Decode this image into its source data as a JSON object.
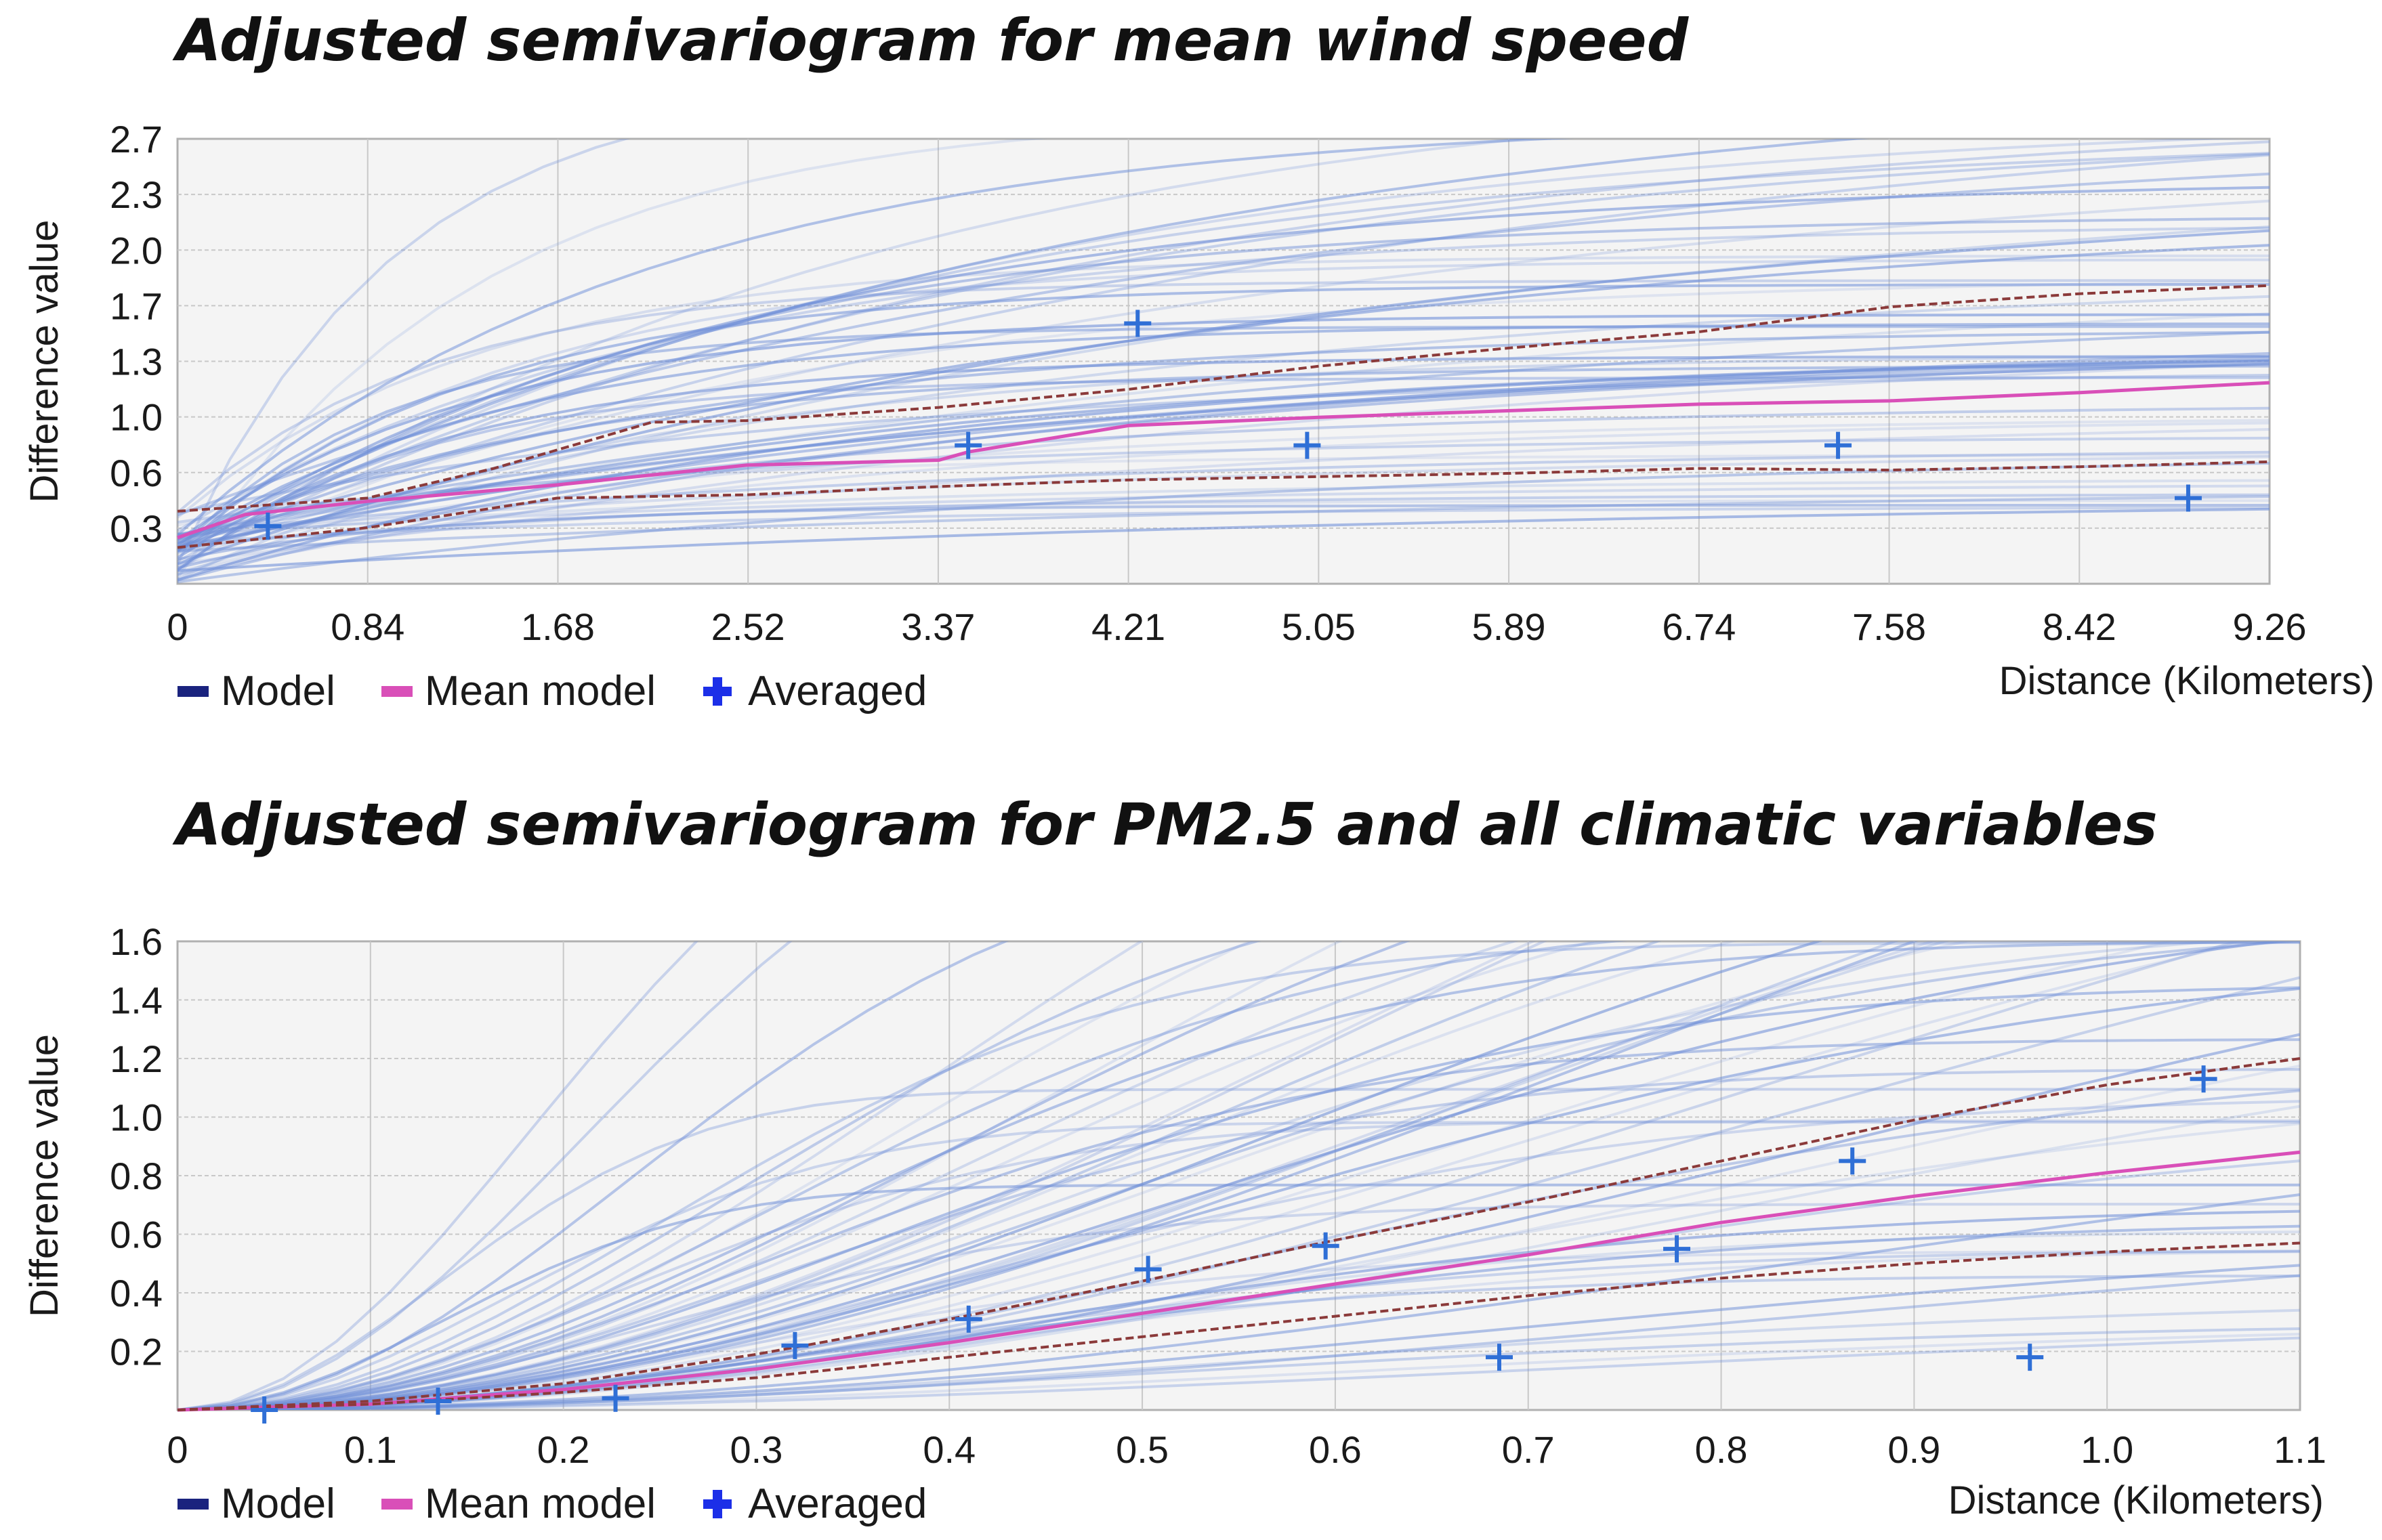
{
  "colors": {
    "model_line": "#1a237e",
    "mean_model": "#d94fb8",
    "averaged": "#1c2fe8",
    "plot_bg": "#f4f4f4",
    "grid": "#c8c8c8",
    "fit_lines": "#6f8fd8",
    "bound_lines": "#8b3a3a"
  },
  "legend": {
    "model": "Model",
    "mean_model": "Mean model",
    "averaged": "Averaged"
  },
  "chart_data": [
    {
      "type": "line",
      "title": "Adjusted semivariogram for mean wind speed",
      "xlabel": "Distance (Kilometers)",
      "ylabel": "Difference value",
      "x_ticks": [
        "0",
        "0.84",
        "1.68",
        "2.52",
        "3.37",
        "4.21",
        "5.05",
        "5.89",
        "6.74",
        "7.58",
        "8.42",
        "9.26"
      ],
      "y_ticks": [
        "0.3",
        "0.6",
        "1.0",
        "1.3",
        "1.7",
        "2.0",
        "2.3",
        "2.7"
      ],
      "xlim": [
        0,
        9.26
      ],
      "ylim": [
        0,
        2.7
      ],
      "grid": true,
      "series": [
        {
          "name": "Mean model",
          "x": [
            0,
            0.3,
            0.84,
            1.68,
            2.52,
            3.37,
            3.5,
            4.21,
            5.05,
            5.89,
            6.74,
            7.58,
            8.42,
            9.26
          ],
          "values": [
            0.28,
            0.42,
            0.5,
            0.6,
            0.72,
            0.75,
            0.8,
            0.96,
            1.01,
            1.05,
            1.09,
            1.11,
            1.16,
            1.22
          ]
        },
        {
          "name": "Upper bound",
          "x": [
            0,
            0.84,
            1.4,
            2.1,
            2.52,
            3.37,
            4.21,
            5.05,
            5.89,
            6.74,
            7.58,
            8.42,
            9.26
          ],
          "values": [
            0.44,
            0.52,
            0.7,
            0.98,
            0.99,
            1.07,
            1.18,
            1.32,
            1.43,
            1.53,
            1.68,
            1.76,
            1.81
          ]
        },
        {
          "name": "Lower bound",
          "x": [
            0,
            0.84,
            1.68,
            2.52,
            3.37,
            4.21,
            5.05,
            5.89,
            6.74,
            7.58,
            8.42,
            9.26
          ],
          "values": [
            0.22,
            0.34,
            0.52,
            0.54,
            0.59,
            0.63,
            0.65,
            0.67,
            0.7,
            0.69,
            0.71,
            0.74
          ]
        },
        {
          "name": "Averaged",
          "x": [
            0.4,
            3.5,
            4.25,
            5.0,
            7.35,
            8.9
          ],
          "values": [
            0.35,
            0.84,
            1.58,
            0.84,
            0.84,
            0.52
          ]
        }
      ]
    },
    {
      "type": "line",
      "title": "Adjusted semivariogram for PM2.5 and all climatic variables",
      "xlabel": "Distance (Kilometers)",
      "ylabel": "Difference value",
      "x_ticks": [
        "0",
        "0.1",
        "0.2",
        "0.3",
        "0.4",
        "0.5",
        "0.6",
        "0.7",
        "0.8",
        "0.9",
        "1.0",
        "1.1"
      ],
      "y_ticks": [
        "0.2",
        "0.4",
        "0.6",
        "0.8",
        "1.0",
        "1.2",
        "1.4",
        "1.6"
      ],
      "xlim": [
        0,
        1.1
      ],
      "ylim": [
        0,
        1.6
      ],
      "grid": true,
      "series": [
        {
          "name": "Mean model",
          "x": [
            0,
            0.1,
            0.2,
            0.3,
            0.4,
            0.5,
            0.6,
            0.7,
            0.8,
            0.9,
            1.0,
            1.1
          ],
          "values": [
            0,
            0.02,
            0.07,
            0.14,
            0.23,
            0.33,
            0.43,
            0.53,
            0.64,
            0.73,
            0.81,
            0.88
          ]
        },
        {
          "name": "Upper bound",
          "x": [
            0,
            0.1,
            0.2,
            0.3,
            0.4,
            0.5,
            0.6,
            0.7,
            0.8,
            0.9,
            1.0,
            1.1
          ],
          "values": [
            0,
            0.03,
            0.09,
            0.19,
            0.31,
            0.44,
            0.58,
            0.71,
            0.85,
            0.99,
            1.11,
            1.2
          ]
        },
        {
          "name": "Lower bound",
          "x": [
            0,
            0.1,
            0.2,
            0.3,
            0.4,
            0.5,
            0.6,
            0.7,
            0.8,
            0.9,
            1.0,
            1.1
          ],
          "values": [
            0,
            0.02,
            0.06,
            0.11,
            0.18,
            0.25,
            0.32,
            0.39,
            0.45,
            0.5,
            0.54,
            0.57
          ]
        },
        {
          "name": "Averaged",
          "x": [
            0.045,
            0.135,
            0.227,
            0.32,
            0.41,
            0.503,
            0.595,
            0.685,
            0.777,
            0.868,
            0.96,
            1.05
          ],
          "values": [
            0.0,
            0.03,
            0.04,
            0.22,
            0.31,
            0.48,
            0.56,
            0.18,
            0.55,
            0.85,
            0.18,
            1.13
          ]
        }
      ]
    }
  ]
}
